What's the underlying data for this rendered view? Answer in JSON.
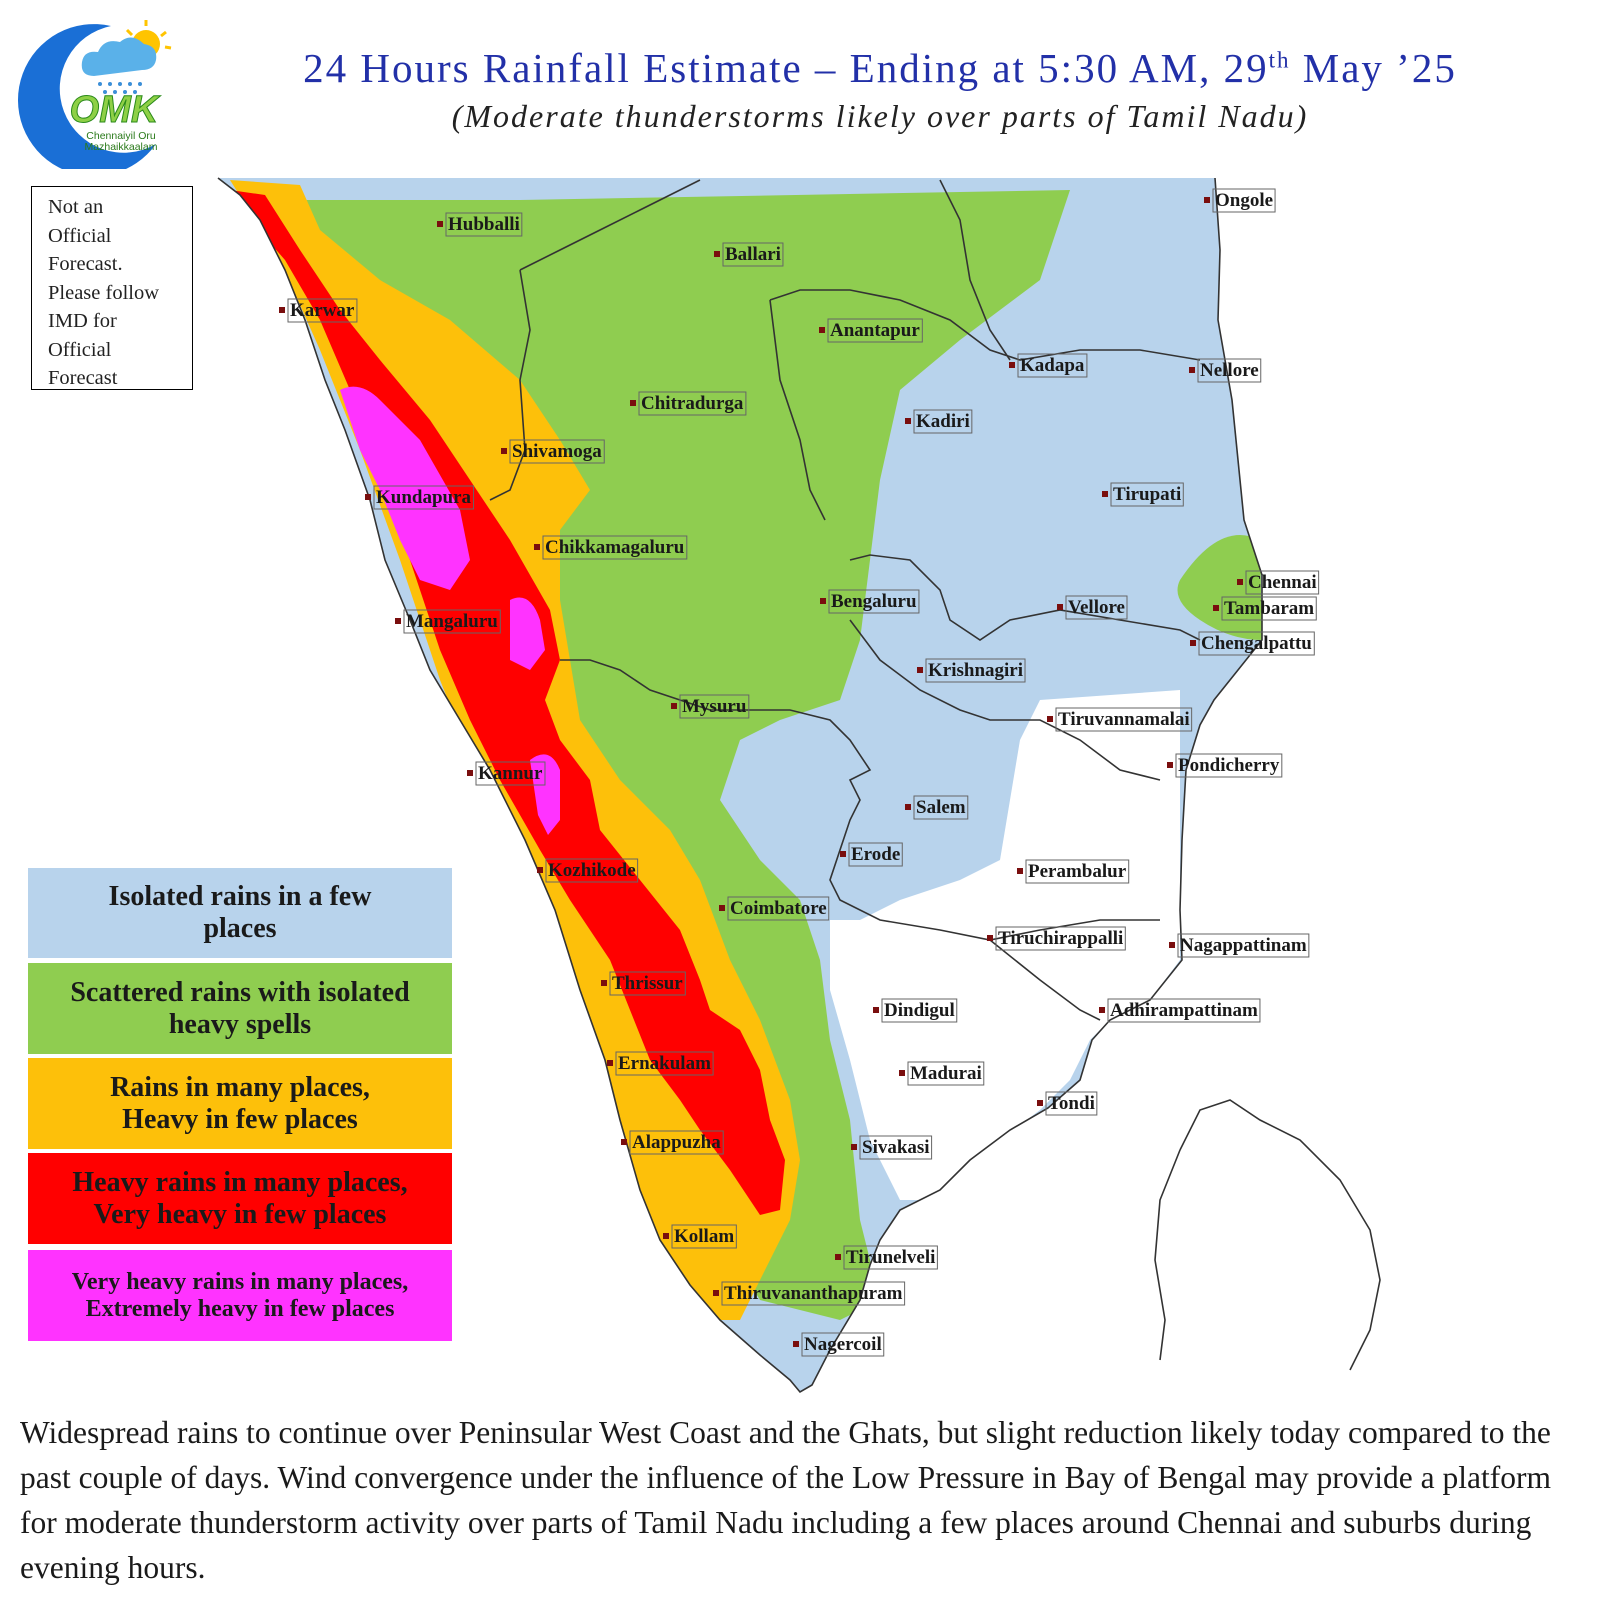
{
  "header": {
    "title_main": "24 Hours Rainfall Estimate – Ending at 5:30 AM, 29",
    "title_sup": "th",
    "title_tail": " May ’25",
    "subtitle": "(Moderate thunderstorms likely over parts of Tamil Nadu)"
  },
  "logo": {
    "text": "OMK",
    "tagline_line1": "Chennaiyil Oru",
    "tagline_line2": "Mazhaikkaalam"
  },
  "disclaimer": {
    "lines": [
      "Not an",
      "Official",
      "Forecast.",
      "Please follow",
      "IMD for",
      "Official",
      "Forecast"
    ]
  },
  "legend": [
    {
      "line1": "Isolated rains in a few",
      "line2": "places",
      "color": "#b8d3ec",
      "text_color": "#1a1a1a"
    },
    {
      "line1": "Scattered rains with isolated",
      "line2": "heavy spells",
      "color": "#8fcd50",
      "text_color": "#1a1a1a"
    },
    {
      "line1": "Rains in many places,",
      "line2": "Heavy in few places",
      "color": "#fdc00a",
      "text_color": "#1a1a1a"
    },
    {
      "line1": "Heavy rains in many places,",
      "line2": "Very heavy in few places",
      "color": "#ff0000",
      "text_color": "#1a1a1a"
    },
    {
      "line1": "Very heavy rains in many places,",
      "line2": "Extremely heavy in few places",
      "color": "#ff33ff",
      "text_color": "#1a1a1a"
    }
  ],
  "cities": [
    {
      "name": "Ongole"
    },
    {
      "name": "Hubballi"
    },
    {
      "name": "Ballari"
    },
    {
      "name": "Karwar"
    },
    {
      "name": "Anantapur"
    },
    {
      "name": "Kadapa"
    },
    {
      "name": "Nellore"
    },
    {
      "name": "Chitradurga"
    },
    {
      "name": "Kadiri"
    },
    {
      "name": "Shivamoga"
    },
    {
      "name": "Tirupati"
    },
    {
      "name": "Kundapura"
    },
    {
      "name": "Chikkamagaluru"
    },
    {
      "name": "Chennai"
    },
    {
      "name": "Bengaluru"
    },
    {
      "name": "Vellore"
    },
    {
      "name": "Tambaram"
    },
    {
      "name": "Mangaluru"
    },
    {
      "name": "Chengalpattu"
    },
    {
      "name": "Krishnagiri"
    },
    {
      "name": "Mysuru"
    },
    {
      "name": "Tiruvannamalai"
    },
    {
      "name": "Pondicherry"
    },
    {
      "name": "Kannur"
    },
    {
      "name": "Salem"
    },
    {
      "name": "Erode"
    },
    {
      "name": "Kozhikode"
    },
    {
      "name": "Perambalur"
    },
    {
      "name": "Coimbatore"
    },
    {
      "name": "Tiruchirappalli"
    },
    {
      "name": "Nagappattinam"
    },
    {
      "name": "Thrissur"
    },
    {
      "name": "Dindigul"
    },
    {
      "name": "Adhirampattinam"
    },
    {
      "name": "Ernakulam"
    },
    {
      "name": "Madurai"
    },
    {
      "name": "Tondi"
    },
    {
      "name": "Alappuzha"
    },
    {
      "name": "Sivakasi"
    },
    {
      "name": "Kollam"
    },
    {
      "name": "Tirunelveli"
    },
    {
      "name": "Thiruvananthapuram"
    },
    {
      "name": "Nagercoil"
    }
  ],
  "footer": {
    "text": "Widespread rains to continue over Peninsular West Coast and the Ghats, but slight reduction likely today compared to the past couple of  days.  Wind convergence under the influence of  the Low Pressure in Bay of  Bengal may provide a platform for moderate thunderstorm activity over parts of Tamil Nadu including a few places around Chennai and suburbs during evening hours."
  },
  "colors": {
    "blue": "#b8d3ec",
    "green": "#8fcd50",
    "orange": "#fdc00a",
    "red": "#ff0000",
    "pink": "#ff33ff",
    "title": "#2230a8"
  }
}
